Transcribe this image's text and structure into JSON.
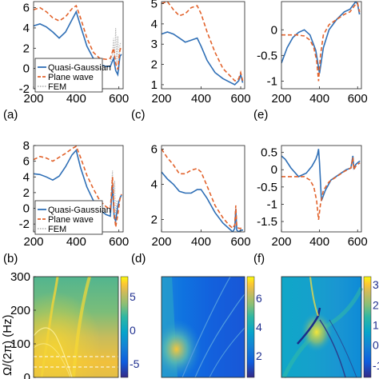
{
  "panel_labels": [
    "(a)",
    "(b)",
    "(c)",
    "(d)",
    "(e)",
    "(f)"
  ],
  "legend": {
    "items": [
      "Quasi-Gaussian",
      "Plane wave",
      "FEM"
    ],
    "colors": [
      "#2f6fb6",
      "#e2622b",
      "#b8b8b8"
    ]
  },
  "colors": {
    "blue": "#2f6fb6",
    "orange": "#e2622b",
    "gray": "#b8b8b8"
  },
  "ylabel_row3": "Ω/(2π) (Hz)",
  "chart_data": [
    {
      "id": "a",
      "type": "line",
      "xlim": [
        200,
        620
      ],
      "ylim": [
        -2,
        6.6
      ],
      "xticks": [
        200,
        400,
        600
      ],
      "yticks": [
        -2,
        0,
        2,
        4,
        6
      ],
      "legend": "lower-left",
      "series": [
        {
          "name": "Quasi-Gaussian",
          "color": "#2f6fb6",
          "style": "solid",
          "x": [
            200,
            230,
            260,
            290,
            320,
            350,
            380,
            400,
            420,
            450,
            480,
            510,
            540,
            560,
            575,
            585,
            595,
            605,
            612
          ],
          "y": [
            4.2,
            4.4,
            4.1,
            3.6,
            3.0,
            3.6,
            4.8,
            5.6,
            4.2,
            2.2,
            1.0,
            0.4,
            0.2,
            0.2,
            1.0,
            -0.2,
            -0.6,
            1.2,
            1.4
          ]
        },
        {
          "name": "Plane wave",
          "color": "#e2622b",
          "style": "dashed",
          "x": [
            200,
            230,
            260,
            290,
            320,
            350,
            380,
            400,
            420,
            450,
            480,
            510,
            540,
            560,
            575,
            585,
            595,
            605,
            612
          ],
          "y": [
            5.8,
            6.0,
            5.6,
            5.0,
            4.7,
            5.1,
            5.9,
            6.2,
            5.0,
            3.0,
            1.6,
            1.0,
            0.9,
            1.0,
            2.0,
            0.5,
            -0.1,
            1.8,
            2.2
          ]
        },
        {
          "name": "FEM",
          "color": "#b8b8b8",
          "style": "dotted",
          "x": [
            560,
            570,
            575,
            580,
            585,
            590,
            595,
            600,
            605,
            612
          ],
          "y": [
            0.6,
            1.4,
            3.0,
            1.0,
            4.0,
            0.5,
            3.2,
            -0.2,
            2.4,
            2.6
          ]
        }
      ]
    },
    {
      "id": "b",
      "type": "line",
      "xlim": [
        200,
        620
      ],
      "ylim": [
        -3,
        8
      ],
      "xticks": [
        200,
        400,
        600
      ],
      "yticks": [
        -2,
        0,
        2,
        4,
        6,
        8
      ],
      "legend": "lower-left",
      "series": [
        {
          "name": "Quasi-Gaussian",
          "color": "#2f6fb6",
          "style": "solid",
          "x": [
            200,
            230,
            260,
            290,
            320,
            350,
            380,
            400,
            420,
            450,
            480,
            510,
            540,
            560,
            570,
            578,
            585,
            595,
            605,
            612
          ],
          "y": [
            4.4,
            4.3,
            4.0,
            3.6,
            4.1,
            5.3,
            6.8,
            7.4,
            5.2,
            2.7,
            1.0,
            -0.2,
            -0.8,
            -1.0,
            3.0,
            -1.2,
            -1.6,
            0.3,
            1.3,
            1.7
          ]
        },
        {
          "name": "Plane wave",
          "color": "#e2622b",
          "style": "dashed",
          "x": [
            200,
            230,
            260,
            290,
            320,
            350,
            380,
            400,
            420,
            450,
            480,
            510,
            540,
            560,
            570,
            578,
            585,
            595,
            605,
            612
          ],
          "y": [
            6.2,
            6.6,
            6.4,
            6.0,
            6.5,
            7.0,
            7.6,
            7.9,
            6.5,
            4.2,
            2.5,
            1.0,
            0.2,
            -0.1,
            4.0,
            -0.6,
            -2.4,
            -0.8,
            1.2,
            1.8
          ]
        },
        {
          "name": "FEM",
          "color": "#b8b8b8",
          "style": "dotted",
          "x": [
            560,
            565,
            570,
            575,
            580,
            585,
            590,
            600,
            612
          ],
          "y": [
            -0.5,
            2.5,
            4.8,
            1.0,
            3.5,
            -1.5,
            1.0,
            0.8,
            1.6
          ]
        }
      ]
    },
    {
      "id": "c",
      "type": "line",
      "xlim": [
        200,
        620
      ],
      "ylim": [
        0.8,
        5.1
      ],
      "xticks": [
        200,
        400,
        600
      ],
      "yticks": [
        1,
        2,
        3,
        4,
        5
      ],
      "series": [
        {
          "name": "Quasi-Gaussian",
          "color": "#2f6fb6",
          "style": "solid",
          "x": [
            200,
            230,
            260,
            290,
            320,
            350,
            380,
            400,
            430,
            470,
            510,
            550,
            570,
            580,
            590,
            600,
            610
          ],
          "y": [
            3.5,
            3.6,
            3.5,
            3.3,
            3.1,
            3.2,
            3.3,
            2.9,
            2.2,
            1.6,
            1.3,
            1.1,
            1.0,
            1.1,
            1.2,
            1.5,
            1.1
          ]
        },
        {
          "name": "Plane wave",
          "color": "#e2622b",
          "style": "dashed",
          "x": [
            200,
            230,
            260,
            290,
            320,
            350,
            380,
            400,
            430,
            470,
            510,
            550,
            570,
            580,
            590,
            600,
            610
          ],
          "y": [
            5.0,
            5.1,
            4.7,
            4.4,
            4.5,
            4.8,
            4.9,
            4.5,
            3.6,
            2.6,
            1.8,
            1.4,
            1.2,
            1.2,
            1.3,
            1.6,
            1.2
          ]
        }
      ]
    },
    {
      "id": "d",
      "type": "line",
      "xlim": [
        200,
        620
      ],
      "ylim": [
        1.3,
        6.2
      ],
      "xticks": [
        200,
        400,
        600
      ],
      "yticks": [
        2,
        4,
        6
      ],
      "series": [
        {
          "name": "Quasi-Gaussian",
          "color": "#2f6fb6",
          "style": "solid",
          "x": [
            200,
            230,
            260,
            290,
            320,
            350,
            380,
            400,
            430,
            470,
            510,
            540,
            560,
            570,
            575,
            580,
            590,
            600,
            612
          ],
          "y": [
            4.7,
            4.3,
            4.0,
            3.6,
            3.5,
            3.5,
            3.7,
            3.7,
            3.2,
            2.4,
            1.8,
            1.5,
            1.3,
            1.5,
            2.6,
            1.4,
            1.3,
            1.4,
            1.4
          ]
        },
        {
          "name": "Plane wave",
          "color": "#e2622b",
          "style": "dashed",
          "x": [
            200,
            230,
            260,
            290,
            320,
            350,
            380,
            400,
            430,
            470,
            510,
            540,
            560,
            570,
            575,
            580,
            590,
            600,
            612
          ],
          "y": [
            6.0,
            5.5,
            5.1,
            4.6,
            4.6,
            4.8,
            4.9,
            4.7,
            3.9,
            2.8,
            2.1,
            1.7,
            1.5,
            1.7,
            2.8,
            1.6,
            1.5,
            1.5,
            1.5
          ]
        }
      ]
    },
    {
      "id": "e",
      "type": "line",
      "xlim": [
        200,
        620
      ],
      "ylim": [
        -1.15,
        0.55
      ],
      "xticks": [
        200,
        400,
        600
      ],
      "yticks": [
        -1,
        -0.5,
        0
      ],
      "series": [
        {
          "name": "Quasi-Gaussian",
          "color": "#2f6fb6",
          "style": "solid",
          "x": [
            200,
            230,
            260,
            290,
            320,
            350,
            380,
            400,
            420,
            450,
            490,
            530,
            560,
            580,
            590,
            600,
            610
          ],
          "y": [
            -0.65,
            -0.35,
            -0.15,
            -0.05,
            0.0,
            -0.1,
            -0.4,
            -0.85,
            -0.35,
            0.0,
            0.2,
            0.35,
            0.4,
            0.5,
            0.55,
            0.5,
            0.3
          ]
        },
        {
          "name": "Plane wave",
          "color": "#e2622b",
          "style": "dashed",
          "x": [
            200,
            240,
            280,
            320,
            350,
            370,
            385,
            395,
            405,
            420,
            450,
            490,
            530,
            560,
            580,
            590,
            600,
            610
          ],
          "y": [
            -0.1,
            -0.1,
            -0.1,
            -0.12,
            -0.2,
            -0.35,
            -0.6,
            -1.0,
            -0.5,
            -0.1,
            0.1,
            0.2,
            0.3,
            0.35,
            0.45,
            0.5,
            0.52,
            0.35
          ]
        }
      ]
    },
    {
      "id": "f",
      "type": "line",
      "xlim": [
        200,
        620
      ],
      "ylim": [
        -1.8,
        0.7
      ],
      "xticks": [
        200,
        400,
        600
      ],
      "yticks": [
        -1.5,
        -1,
        -0.5,
        0,
        0.5
      ],
      "series": [
        {
          "name": "Quasi-Gaussian",
          "color": "#2f6fb6",
          "style": "solid",
          "x": [
            200,
            220,
            250,
            290,
            330,
            360,
            380,
            390,
            395,
            400,
            410,
            430,
            460,
            500,
            540,
            565,
            575,
            580,
            590,
            600,
            612
          ],
          "y": [
            0.4,
            0.3,
            0.05,
            -0.2,
            -0.1,
            0.1,
            0.3,
            0.45,
            0.6,
            0.2,
            -0.9,
            -0.6,
            -0.3,
            -0.15,
            0.0,
            0.05,
            0.4,
            0.05,
            0.15,
            0.2,
            0.25
          ]
        },
        {
          "name": "Plane wave",
          "color": "#e2622b",
          "style": "dashed",
          "x": [
            200,
            240,
            280,
            320,
            350,
            370,
            385,
            395,
            405,
            420,
            450,
            490,
            530,
            565,
            575,
            580,
            590,
            600,
            612
          ],
          "y": [
            -0.2,
            -0.2,
            -0.2,
            -0.2,
            -0.3,
            -0.5,
            -0.9,
            -1.45,
            -1.0,
            -0.6,
            -0.35,
            -0.2,
            -0.05,
            0.05,
            0.35,
            0.0,
            0.1,
            0.15,
            0.2
          ]
        }
      ]
    },
    {
      "id": "g",
      "type": "heatmap",
      "ylim": [
        0,
        300
      ],
      "yticks": [
        0,
        100,
        200,
        300
      ],
      "colorbar": {
        "ticks": [
          5,
          0,
          -5
        ],
        "tick_values": [
          5,
          0,
          -5
        ],
        "range": [
          -7,
          8
        ]
      }
    },
    {
      "id": "h",
      "type": "heatmap",
      "colorbar": {
        "ticks": [
          6,
          4,
          2
        ],
        "tick_values": [
          6,
          4,
          2
        ],
        "range": [
          0.5,
          7.5
        ]
      }
    },
    {
      "id": "i",
      "type": "heatmap",
      "colorbar": {
        "ticks": [
          3,
          2,
          1,
          0,
          -1
        ],
        "tick_values": [
          3,
          2,
          1,
          0,
          -1
        ],
        "range": [
          -1.6,
          3.4
        ]
      }
    }
  ]
}
